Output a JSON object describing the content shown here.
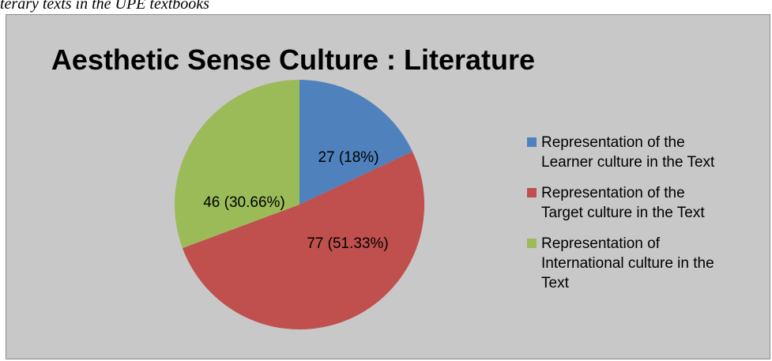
{
  "caption": "terary texts in the UPE textbooks",
  "chart_data": {
    "type": "pie",
    "title": "Aesthetic Sense Culture : Literature",
    "slices": [
      {
        "name": "Representation of the Learner culture in the Text",
        "value": 27,
        "percent": 18,
        "label": "27 (18%)",
        "color": "#4f81bd"
      },
      {
        "name": "Representation of the Target culture in the Text",
        "value": 77,
        "percent": 51.33,
        "label": "77 (51.33%)",
        "color": "#c0504d"
      },
      {
        "name": "Representation of International culture in the Text",
        "value": 46,
        "percent": 30.66,
        "label": "46 (30.66%)",
        "color": "#9bbb59"
      }
    ],
    "legend_position": "right",
    "legend_lines": [
      [
        "Representation of the",
        "Learner culture in the Text"
      ],
      [
        "Representation of the",
        "Target culture in the Text"
      ],
      [
        "Representation of",
        "International culture in the",
        "Text"
      ]
    ],
    "background_color": "#c8c8c8"
  }
}
